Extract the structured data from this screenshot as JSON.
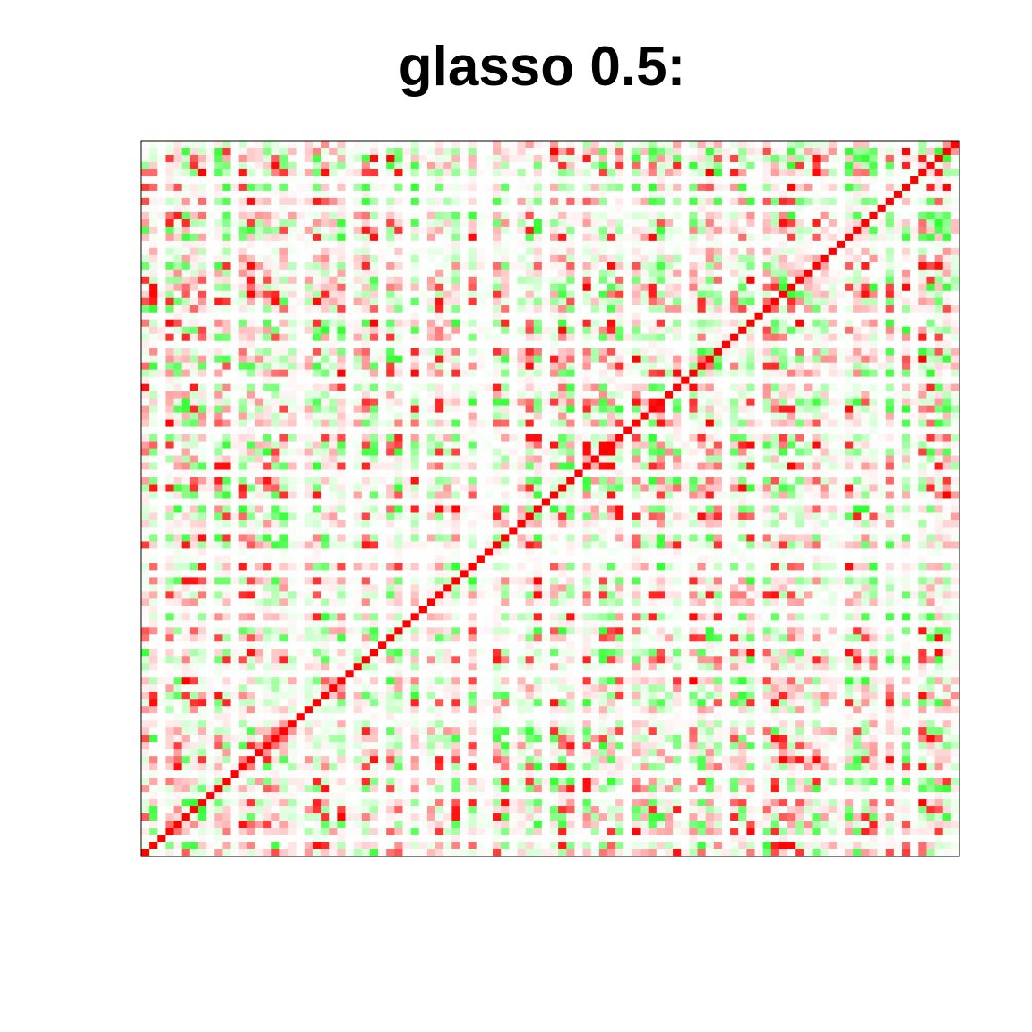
{
  "chart_data": {
    "type": "heatmap",
    "title": "glasso 0.5:",
    "xlabel": "",
    "ylabel": "",
    "rows": 100,
    "cols": 100,
    "grid": false,
    "legend": "none",
    "color_scale": {
      "negative": "#33ff33",
      "zero": "#ffffff",
      "positive": "#ff0000"
    },
    "diagonal_value": 1,
    "diagonal_color": "#ff0000",
    "off_diagonal_range": [
      -0.6,
      0.6
    ],
    "frame_color": "#000000"
  }
}
